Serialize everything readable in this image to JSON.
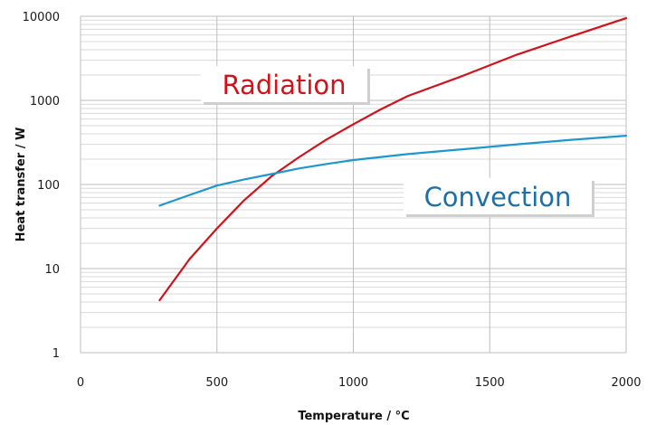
{
  "chart_data": {
    "type": "line",
    "title": "",
    "xlabel": "Temperature / °C",
    "ylabel": "Heat transfer / W",
    "xlim": [
      0,
      2000
    ],
    "ylim": [
      1,
      10000
    ],
    "yscale": "log",
    "grid": true,
    "x_ticks": [
      0,
      500,
      1000,
      1500,
      2000
    ],
    "y_ticks": [
      1,
      10,
      100,
      1000,
      10000
    ],
    "x_tick_labels": [
      "0",
      "500",
      "1000",
      "1500",
      "2000"
    ],
    "y_tick_labels": [
      "1",
      "10",
      "100",
      "1000",
      "10000"
    ],
    "series": [
      {
        "name": "Radiation",
        "color": "#d0121b",
        "x": [
          290,
          400,
          500,
          600,
          700,
          800,
          900,
          1000,
          1100,
          1200,
          1400,
          1600,
          1800,
          2000
        ],
        "y": [
          4.2,
          13,
          30,
          65,
          125,
          210,
          340,
          520,
          780,
          1130,
          1950,
          3500,
          5800,
          9500
        ]
      },
      {
        "name": "Convection",
        "color": "#1e97cf",
        "x": [
          290,
          400,
          500,
          600,
          700,
          800,
          900,
          1000,
          1200,
          1400,
          1600,
          1800,
          2000
        ],
        "y": [
          56,
          75,
          97,
          115,
          133,
          155,
          175,
          195,
          230,
          262,
          300,
          340,
          380
        ]
      }
    ],
    "annotations": [
      {
        "text": "Radiation",
        "color": "#d0121b"
      },
      {
        "text": "Convection",
        "color": "#1e6fa6"
      }
    ]
  }
}
